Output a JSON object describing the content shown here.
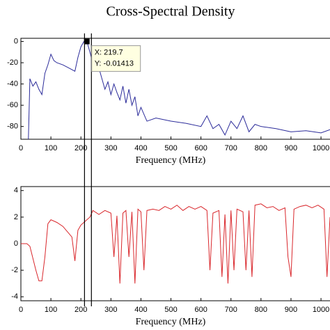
{
  "chart_data": [
    {
      "type": "line",
      "title": "Cross-Spectral Density",
      "xlabel": "Frequency (MHz)",
      "x": [
        25,
        30,
        40,
        50,
        60,
        70,
        80,
        90,
        100,
        110,
        120,
        140,
        160,
        180,
        190,
        200,
        210,
        220,
        230,
        240,
        250,
        260,
        270,
        280,
        290,
        300,
        310,
        320,
        330,
        340,
        350,
        360,
        370,
        380,
        390,
        400,
        420,
        450,
        500,
        550,
        600,
        620,
        640,
        660,
        680,
        700,
        720,
        740,
        760,
        780,
        800,
        850,
        900,
        950,
        1000,
        1030
      ],
      "values": [
        -92,
        -35,
        -42,
        -38,
        -45,
        -50,
        -30,
        -22,
        -12,
        -18,
        -20,
        -22,
        -25,
        -28,
        -15,
        -5,
        0,
        -0.01,
        -10,
        -20,
        -15,
        -25,
        -35,
        -45,
        -38,
        -50,
        -40,
        -48,
        -55,
        -42,
        -58,
        -45,
        -60,
        -52,
        -70,
        -62,
        -75,
        -72,
        -75,
        -77,
        -80,
        -70,
        -82,
        -78,
        -88,
        -75,
        -82,
        -70,
        -85,
        -78,
        -80,
        -82,
        -85,
        -84,
        -86,
        -83
      ],
      "color": "#2b2b9a",
      "xlim": [
        0,
        1030
      ],
      "xticks": [
        0,
        100,
        200,
        300,
        400,
        500,
        600,
        700,
        800,
        900,
        1000
      ],
      "ylim": [
        -92,
        3
      ],
      "yticks": [
        0,
        -20,
        -40,
        -60,
        -80
      ],
      "datatip": {
        "x": 219.7,
        "y": -0.01413,
        "labels": [
          "X: 219.7",
          "Y: -0.01413"
        ]
      },
      "cursors": [
        212,
        235
      ]
    },
    {
      "type": "line",
      "xlabel": "Frequency (MHz)",
      "x": [
        0,
        20,
        30,
        50,
        60,
        70,
        80,
        90,
        100,
        120,
        140,
        170,
        180,
        190,
        200,
        220,
        230,
        240,
        260,
        280,
        300,
        310,
        320,
        330,
        340,
        350,
        360,
        370,
        380,
        390,
        400,
        410,
        420,
        440,
        460,
        480,
        500,
        520,
        540,
        560,
        580,
        600,
        620,
        630,
        640,
        660,
        670,
        680,
        690,
        700,
        710,
        720,
        740,
        750,
        760,
        770,
        780,
        800,
        820,
        840,
        860,
        880,
        890,
        900,
        910,
        930,
        950,
        970,
        990,
        1010,
        1020,
        1030
      ],
      "values": [
        0,
        0,
        -0.2,
        -2,
        -2.8,
        -2.8,
        -1,
        1.5,
        1.8,
        1.6,
        1.3,
        0.5,
        -1.3,
        1,
        1.4,
        1.8,
        2,
        2.5,
        2.2,
        2.5,
        2.3,
        -1,
        2.1,
        -3,
        2.3,
        2.5,
        -1,
        2.4,
        -3,
        2.6,
        2.4,
        -2,
        2.5,
        2.6,
        2.5,
        2.8,
        2.6,
        2.9,
        2.5,
        2.8,
        2.6,
        2.8,
        2.5,
        -2,
        2.3,
        2.5,
        -2.5,
        2.2,
        -3,
        2.5,
        -2,
        2.6,
        2.4,
        -2,
        2.5,
        -2.5,
        2.9,
        3,
        2.7,
        2.8,
        2.5,
        2.7,
        -1,
        -2.5,
        2.6,
        2.8,
        2.9,
        2.7,
        2.9,
        2.6,
        -2.5,
        2
      ],
      "color": "#d9262b",
      "xlim": [
        0,
        1030
      ],
      "xticks": [
        0,
        100,
        200,
        300,
        400,
        500,
        600,
        700,
        800,
        900,
        1000
      ],
      "ylim": [
        -4.3,
        4.3
      ],
      "yticks": [
        4,
        2,
        0,
        -2,
        -4
      ]
    }
  ]
}
